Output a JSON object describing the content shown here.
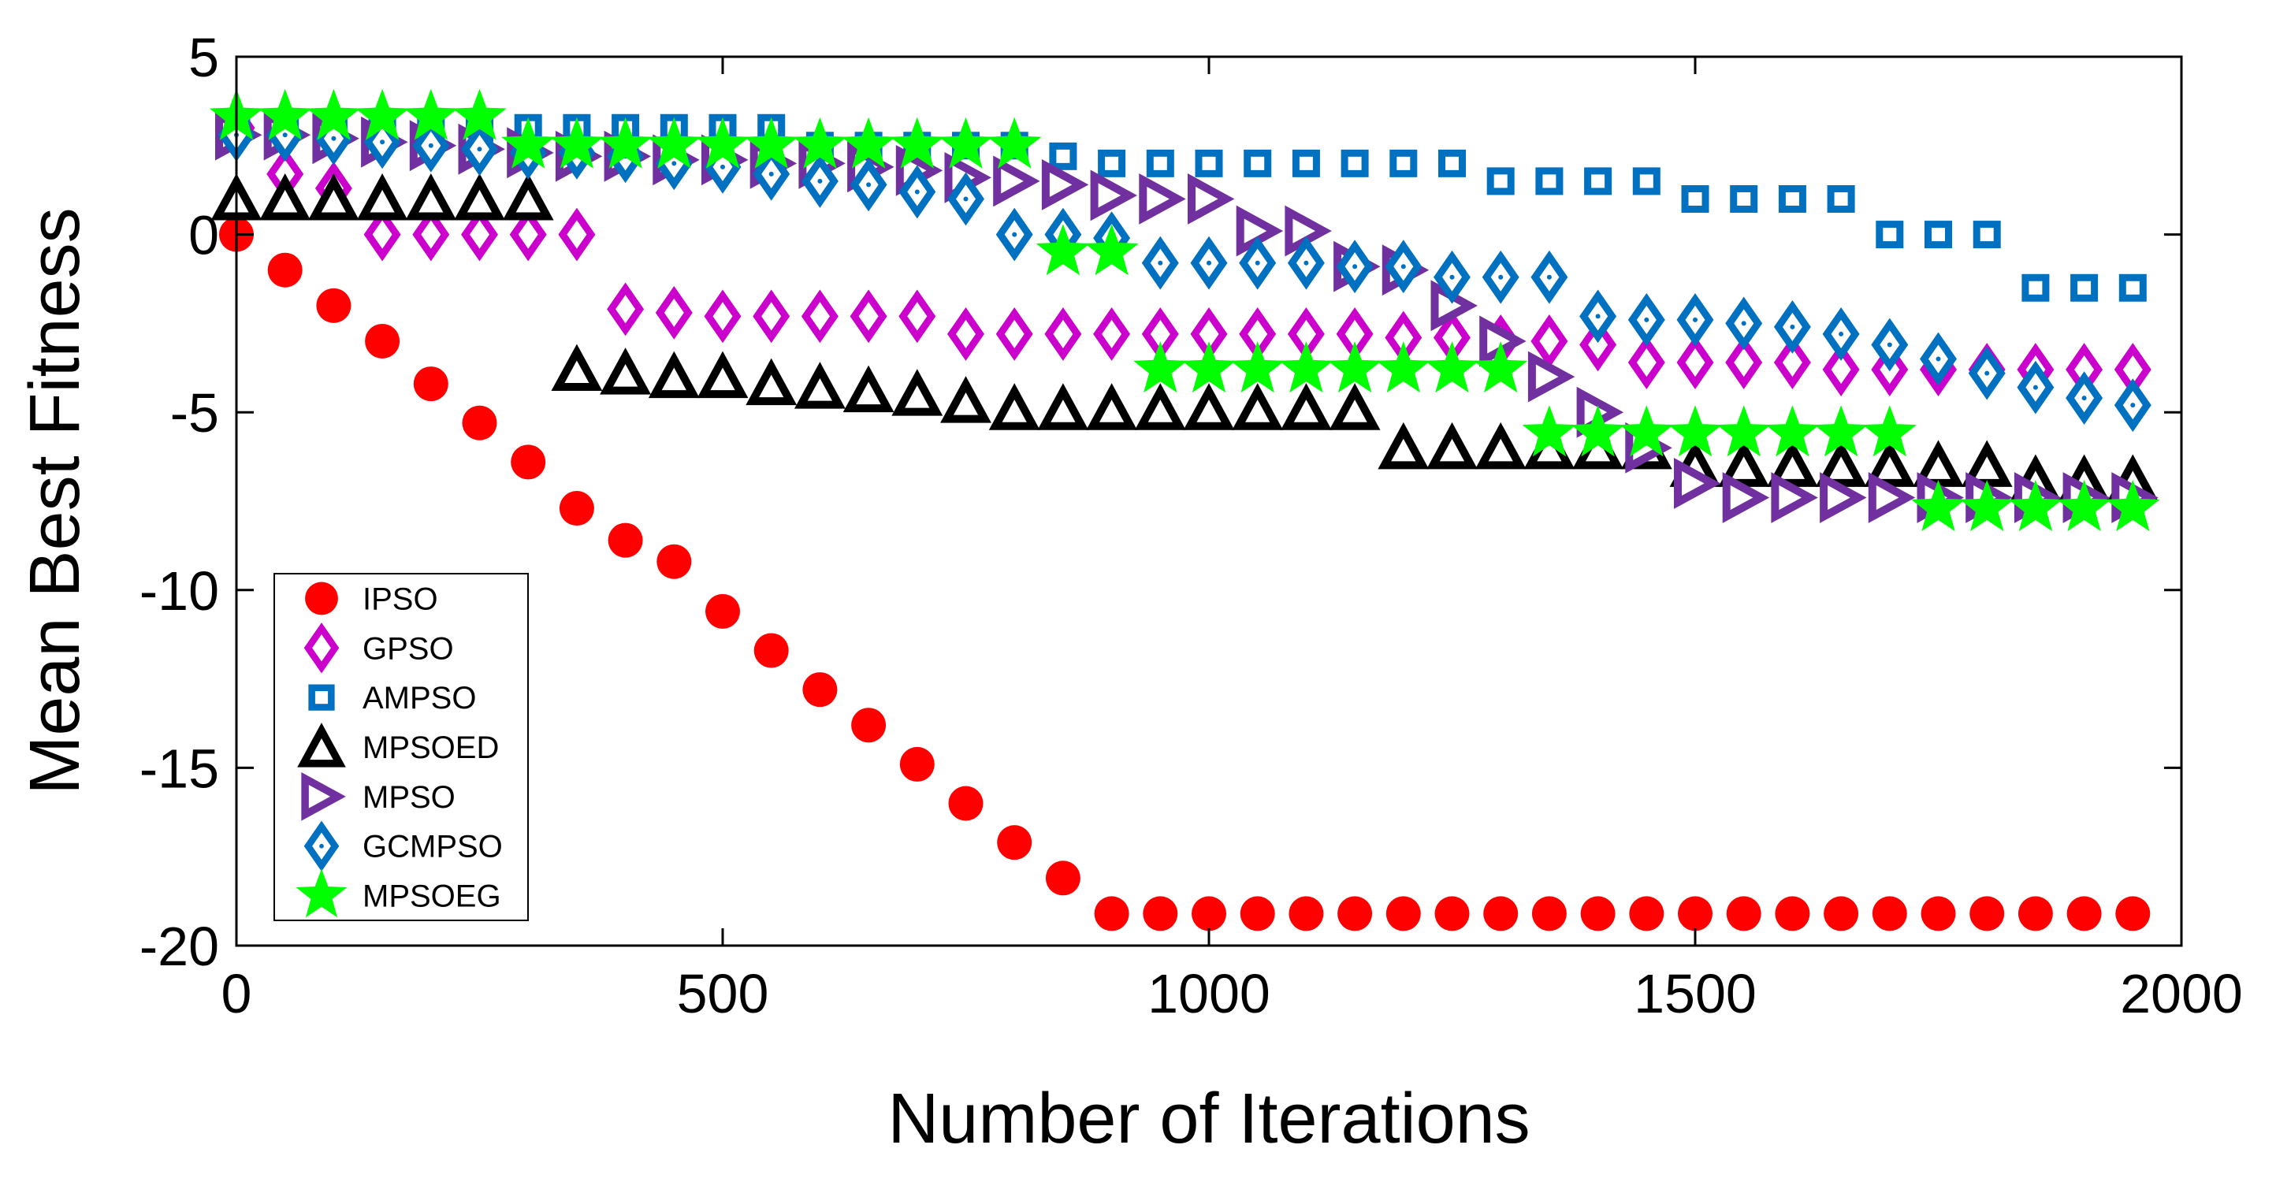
{
  "chart_data": {
    "type": "scatter",
    "title": "",
    "xlabel": "Number of Iterations",
    "ylabel": "Mean Best Fitness",
    "xlim": [
      0,
      2000
    ],
    "ylim": [
      -20,
      5
    ],
    "xticks": [
      0,
      500,
      1000,
      1500,
      2000
    ],
    "yticks": [
      5,
      0,
      -5,
      -10,
      -15,
      -20
    ],
    "grid": false,
    "legend_position": "bottom-left",
    "series": [
      {
        "name": "IPSO",
        "marker": "circle",
        "color": "#ff0000",
        "x": [
          0,
          50,
          100,
          150,
          200,
          250,
          300,
          350,
          400,
          450,
          500,
          550,
          600,
          650,
          700,
          750,
          800,
          850,
          900,
          950,
          1000,
          1050,
          1100,
          1150,
          1200,
          1250,
          1300,
          1350,
          1400,
          1450,
          1500,
          1550,
          1600,
          1650,
          1700,
          1750,
          1800,
          1850,
          1900,
          1950
        ],
        "y": [
          0,
          -1,
          -2,
          -3,
          -4.2,
          -5.3,
          -6.4,
          -7.7,
          -8.6,
          -9.2,
          -10.6,
          -11.7,
          -12.8,
          -13.8,
          -14.9,
          -16,
          -17.1,
          -18.1,
          -19.1,
          -19.1,
          -19.1,
          -19.1,
          -19.1,
          -19.1,
          -19.1,
          -19.1,
          -19.1,
          -19.1,
          -19.1,
          -19.1,
          -19.1,
          -19.1,
          -19.1,
          -19.1,
          -19.1,
          -19.1,
          -19.1,
          -19.1,
          -19.1,
          -19.1
        ]
      },
      {
        "name": "GPSO",
        "marker": "diamond",
        "color": "#cc00cc",
        "x": [
          0,
          50,
          100,
          150,
          200,
          250,
          300,
          350,
          400,
          450,
          500,
          550,
          600,
          650,
          700,
          750,
          800,
          850,
          900,
          950,
          1000,
          1050,
          1100,
          1150,
          1200,
          1250,
          1300,
          1350,
          1400,
          1450,
          1500,
          1550,
          1600,
          1650,
          1700,
          1750,
          1800,
          1850,
          1900,
          1950
        ],
        "y": [
          3,
          1.7,
          1.3,
          0,
          0,
          0,
          0,
          0,
          -2.1,
          -2.2,
          -2.3,
          -2.3,
          -2.3,
          -2.3,
          -2.3,
          -2.8,
          -2.8,
          -2.8,
          -2.8,
          -2.8,
          -2.8,
          -2.8,
          -2.8,
          -2.8,
          -2.9,
          -2.9,
          -3,
          -3,
          -3.1,
          -3.6,
          -3.6,
          -3.6,
          -3.6,
          -3.8,
          -3.8,
          -3.8,
          -3.8,
          -3.8,
          -3.8,
          -3.8
        ]
      },
      {
        "name": "AMPSO",
        "marker": "square",
        "color": "#0070c0",
        "x": [
          0,
          50,
          100,
          150,
          200,
          250,
          300,
          350,
          400,
          450,
          500,
          550,
          600,
          650,
          700,
          750,
          800,
          850,
          900,
          950,
          1000,
          1050,
          1100,
          1150,
          1200,
          1250,
          1300,
          1350,
          1400,
          1450,
          1500,
          1550,
          1600,
          1650,
          1700,
          1750,
          1800,
          1850,
          1900,
          1950
        ],
        "y": [
          3,
          3,
          3,
          3,
          3,
          3,
          3,
          3,
          3,
          3,
          3,
          3,
          2.5,
          2.5,
          2.5,
          2.5,
          2.5,
          2.2,
          2,
          2,
          2,
          2,
          2,
          2,
          2,
          2,
          1.5,
          1.5,
          1.5,
          1.5,
          1,
          1,
          1,
          1,
          0,
          0,
          0,
          -1.5,
          -1.5,
          -1.5
        ]
      },
      {
        "name": "MPSOED",
        "marker": "triangle-up",
        "color": "#000000",
        "x": [
          0,
          50,
          100,
          150,
          200,
          250,
          300,
          350,
          400,
          450,
          500,
          550,
          600,
          650,
          700,
          750,
          800,
          850,
          900,
          950,
          1000,
          1050,
          1100,
          1150,
          1200,
          1250,
          1300,
          1350,
          1400,
          1450,
          1500,
          1550,
          1600,
          1650,
          1700,
          1750,
          1800,
          1850,
          1900,
          1950
        ],
        "y": [
          1,
          1,
          1,
          1,
          1,
          1,
          1,
          -3.8,
          -3.9,
          -4,
          -4,
          -4.2,
          -4.3,
          -4.4,
          -4.5,
          -4.7,
          -4.9,
          -4.9,
          -4.9,
          -4.9,
          -4.9,
          -4.9,
          -4.9,
          -4.9,
          -6,
          -6,
          -6,
          -6,
          -6,
          -6,
          -6.5,
          -6.5,
          -6.5,
          -6.5,
          -6.5,
          -6.5,
          -6.5,
          -6.9,
          -6.9,
          -6.9
        ]
      },
      {
        "name": "MPSO",
        "marker": "triangle-right",
        "color": "#7030a0",
        "x": [
          0,
          50,
          100,
          150,
          200,
          250,
          300,
          350,
          400,
          450,
          500,
          550,
          600,
          650,
          700,
          750,
          800,
          850,
          900,
          950,
          1000,
          1050,
          1100,
          1150,
          1200,
          1250,
          1300,
          1350,
          1400,
          1450,
          1500,
          1550,
          1600,
          1650,
          1700,
          1750,
          1800,
          1850,
          1900,
          1950
        ],
        "y": [
          2.8,
          2.8,
          2.7,
          2.6,
          2.5,
          2.4,
          2.3,
          2.2,
          2.2,
          2.1,
          2.1,
          2,
          2,
          1.9,
          1.8,
          1.6,
          1.5,
          1.4,
          1.1,
          1,
          1,
          0.1,
          0.1,
          -0.9,
          -1,
          -2,
          -3,
          -4,
          -5,
          -6,
          -7,
          -7.4,
          -7.4,
          -7.4,
          -7.4,
          -7.4,
          -7.4,
          -7.4,
          -7.4,
          -7.4
        ]
      },
      {
        "name": "GCMPSO",
        "marker": "diamond-dot",
        "color": "#0070c0",
        "x": [
          0,
          50,
          100,
          150,
          200,
          250,
          300,
          350,
          400,
          450,
          500,
          550,
          600,
          650,
          700,
          750,
          800,
          850,
          900,
          950,
          1000,
          1050,
          1100,
          1150,
          1200,
          1250,
          1300,
          1350,
          1400,
          1450,
          1500,
          1550,
          1600,
          1650,
          1700,
          1750,
          1800,
          1850,
          1900,
          1950
        ],
        "y": [
          2.8,
          2.8,
          2.7,
          2.6,
          2.5,
          2.4,
          2.3,
          2.3,
          2.2,
          2,
          1.9,
          1.7,
          1.5,
          1.4,
          1.2,
          1,
          0,
          0,
          -0.1,
          -0.8,
          -0.8,
          -0.8,
          -0.8,
          -0.9,
          -0.9,
          -1.2,
          -1.2,
          -1.2,
          -2.3,
          -2.4,
          -2.4,
          -2.5,
          -2.6,
          -2.8,
          -3.1,
          -3.5,
          -3.9,
          -4.3,
          -4.6,
          -4.8
        ]
      },
      {
        "name": "MPSOEG",
        "marker": "star",
        "color": "#00ff00",
        "x": [
          0,
          50,
          100,
          150,
          200,
          250,
          300,
          350,
          400,
          450,
          500,
          550,
          600,
          650,
          700,
          750,
          800,
          850,
          900,
          950,
          1000,
          1050,
          1100,
          1150,
          1200,
          1250,
          1300,
          1350,
          1400,
          1450,
          1500,
          1550,
          1600,
          1650,
          1700,
          1750,
          1800,
          1850,
          1900,
          1950
        ],
        "y": [
          3.3,
          3.3,
          3.3,
          3.3,
          3.3,
          3.3,
          2.5,
          2.5,
          2.5,
          2.5,
          2.5,
          2.5,
          2.5,
          2.5,
          2.5,
          2.5,
          2.5,
          -0.5,
          -0.5,
          -3.8,
          -3.8,
          -3.8,
          -3.8,
          -3.8,
          -3.8,
          -3.8,
          -3.8,
          -5.6,
          -5.6,
          -5.6,
          -5.6,
          -5.6,
          -5.6,
          -5.6,
          -5.6,
          -7.7,
          -7.7,
          -7.7,
          -7.7,
          -7.7
        ]
      }
    ]
  }
}
